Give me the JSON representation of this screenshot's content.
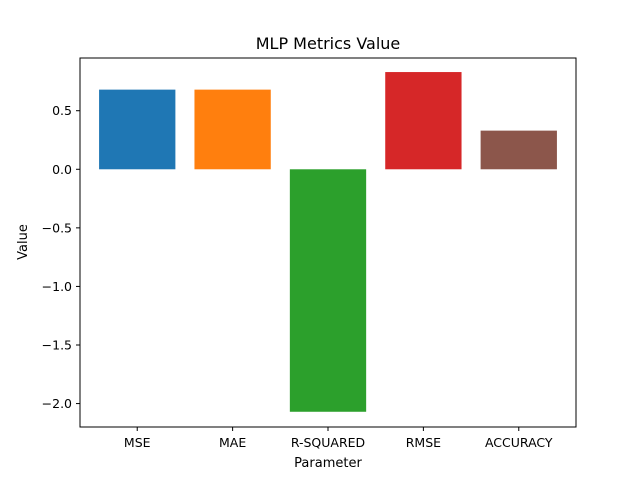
{
  "chart_data": {
    "type": "bar",
    "title": "MLP Metrics Value",
    "xlabel": "Parameter",
    "ylabel": "Value",
    "categories": [
      "MSE",
      "MAE",
      "R-SQUARED",
      "RMSE",
      "ACCURACY"
    ],
    "values": [
      0.68,
      0.68,
      -2.07,
      0.83,
      0.33
    ],
    "colors": [
      "#1f77b4",
      "#ff7f0e",
      "#2ca02c",
      "#d62728",
      "#8c564b"
    ],
    "ylim": [
      -2.2,
      0.95
    ],
    "yticks": [
      0.5,
      0.0,
      -0.5,
      -1.0,
      -1.5,
      -2.0
    ],
    "ytick_labels": [
      "0.5",
      "0.0",
      "−0.5",
      "−1.0",
      "−1.5",
      "−2.0"
    ],
    "grid": false,
    "legend": "none"
  }
}
